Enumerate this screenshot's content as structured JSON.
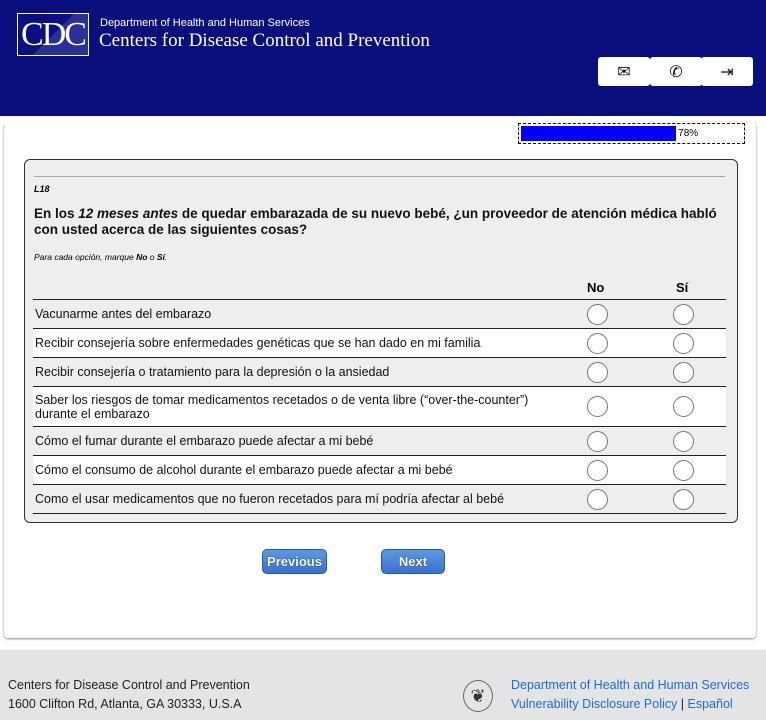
{
  "header": {
    "logo_text": "CDC",
    "department": "Department of Health and Human Services",
    "agency": "Centers for Disease Control and Prevention",
    "buttons": [
      {
        "icon": "envelope-icon"
      },
      {
        "icon": "phone-icon"
      },
      {
        "icon": "sign-in-icon"
      }
    ]
  },
  "progress": {
    "value": 78,
    "label": "78%",
    "color": "#0000ff"
  },
  "question": {
    "id": "L18",
    "text_pre": "En los ",
    "text_em": "12 meses antes",
    "text_post": " de quedar embarazada de su nuevo bebé, ¿un proveedor de atención médica habló con usted acerca de las siguientes cosas?",
    "instr_pre": "Para cada opción, marque ",
    "instr_no": "No",
    "instr_mid": " o ",
    "instr_si": "Sí",
    "instr_end": ".",
    "columns": [
      "No",
      "Sí"
    ],
    "rows": [
      "Vacunarme antes del embarazo",
      "Recibir consejería sobre enfermedades genéticas que se han dado en mi familia",
      "Recibir consejería o tratamiento para la depresión o la ansiedad",
      "Saber los riesgos de tomar medicamentos recetados o de venta libre (“over-the-counter”) durante el embarazo",
      "Cómo el fumar durante el embarazo puede afectar a mi bebé",
      "Cómo el consumo de alcohol durante el embarazo puede afectar a mi bebé",
      "Como el usar medicamentos que no fueron recetados para mí podría afectar al bebé"
    ]
  },
  "nav": {
    "previous": "Previous",
    "next": "Next"
  },
  "footer": {
    "org": "Centers for Disease Control and Prevention",
    "address": "1600 Clifton Rd, Atlanta, GA 30333, U.S.A",
    "hhs_link": "Department of Health and Human Services",
    "vdp_link": "Vulnerability Disclosure Policy",
    "sep": "|",
    "espanol": "Español"
  }
}
